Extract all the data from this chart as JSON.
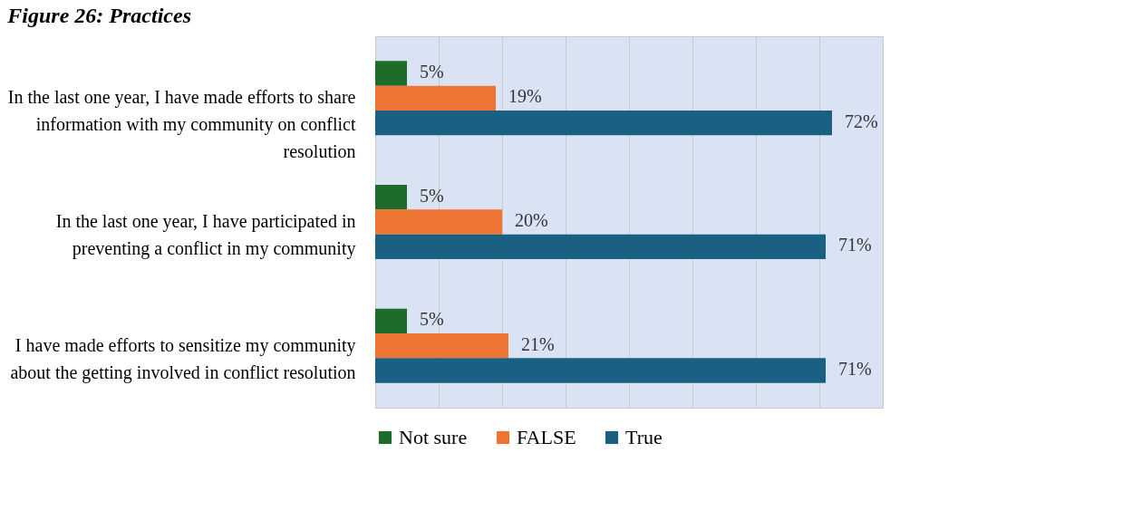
{
  "chart_data": {
    "type": "bar",
    "orientation": "horizontal",
    "title": "Figure 26: Practices",
    "categories": [
      "In the last one year, I have made efforts to share information with my community on conflict resolution",
      "In the last one year, I have participated in preventing a conflict in my community",
      "I have made efforts to sensitize my community about the getting involved in conflict resolution"
    ],
    "series": [
      {
        "name": "Not sure",
        "color": "#1e6b2a",
        "values": [
          5,
          5,
          5
        ],
        "value_labels": [
          "5%",
          "5%",
          "5%"
        ]
      },
      {
        "name": "FALSE",
        "color": "#ed7432",
        "values": [
          19,
          20,
          21
        ],
        "value_labels": [
          "19%",
          "20%",
          "21%"
        ]
      },
      {
        "name": "True",
        "color": "#1a6082",
        "values": [
          72,
          71,
          71
        ],
        "value_labels": [
          "72%",
          "71%",
          "71%"
        ]
      }
    ],
    "xlim": [
      0,
      80
    ],
    "xticks": [
      {
        "value": 0,
        "label": null
      },
      {
        "value": 10,
        "label": null
      },
      {
        "value": 20,
        "label": null
      },
      {
        "value": 30,
        "label": null
      },
      {
        "value": 40,
        "label": null
      },
      {
        "value": 50,
        "label": null
      },
      {
        "value": 60,
        "label": null
      },
      {
        "value": 70,
        "label": null
      },
      {
        "value": 80,
        "label": null
      }
    ],
    "tick_labels": "y",
    "grid": "x",
    "legend": "bottom"
  }
}
